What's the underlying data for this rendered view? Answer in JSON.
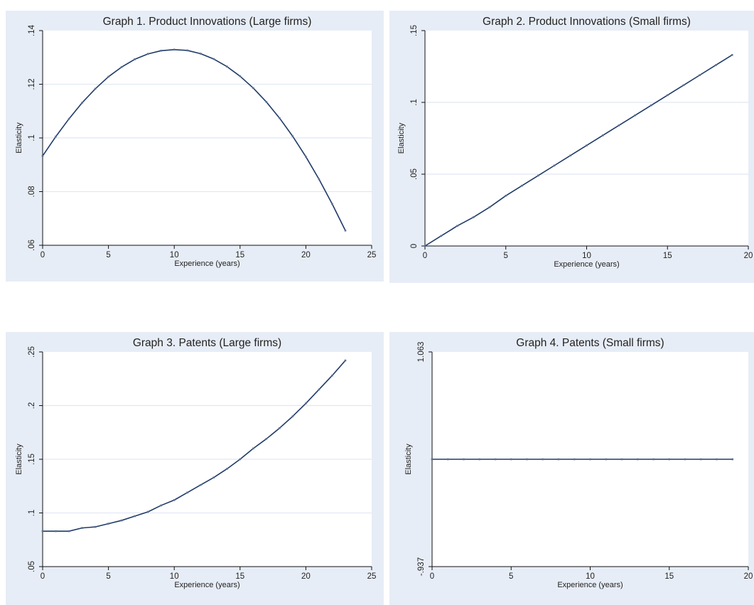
{
  "chart_data": [
    {
      "type": "line",
      "title": "Graph 1. Product Innovations (Large firms)",
      "xlabel": "Experience (years)",
      "ylabel": "Elasticity",
      "xlim": [
        0,
        25
      ],
      "ylim": [
        0.06,
        0.14
      ],
      "xticks": [
        0,
        5,
        10,
        15,
        20,
        25
      ],
      "xtick_labels": [
        "0",
        "5",
        "10",
        "15",
        "20",
        "25"
      ],
      "yticks": [
        0.06,
        0.08,
        0.1,
        0.12,
        0.14
      ],
      "ytick_labels": [
        ".06",
        ".08",
        ".1",
        ".12",
        ".14"
      ],
      "grid": true,
      "color": "#1f3a68",
      "x": [
        0,
        1,
        2,
        3,
        4,
        5,
        6,
        7,
        8,
        9,
        10,
        11,
        12,
        13,
        14,
        15,
        16,
        17,
        18,
        19,
        20,
        21,
        22,
        23
      ],
      "y": [
        0.0933,
        0.1005,
        0.1071,
        0.1131,
        0.1183,
        0.1228,
        0.1264,
        0.1293,
        0.1313,
        0.1325,
        0.1329,
        0.1326,
        0.1314,
        0.1294,
        0.1266,
        0.123,
        0.1186,
        0.1134,
        0.1074,
        0.1006,
        0.093,
        0.0846,
        0.0754,
        0.0655
      ]
    },
    {
      "type": "line",
      "title": "Graph 2. Product Innovations (Small firms)",
      "xlabel": "Experience (years)",
      "ylabel": "Elasticity",
      "xlim": [
        0,
        20
      ],
      "ylim": [
        0,
        0.15
      ],
      "xticks": [
        0,
        5,
        10,
        15,
        20
      ],
      "xtick_labels": [
        "0",
        "5",
        "10",
        "15",
        "20"
      ],
      "yticks": [
        0,
        0.05,
        0.1,
        0.15
      ],
      "ytick_labels": [
        "0",
        ".05",
        ".1",
        ".15"
      ],
      "grid": true,
      "color": "#1f3a68",
      "x": [
        0,
        1,
        2,
        3,
        4,
        5,
        6,
        7,
        8,
        9,
        10,
        11,
        12,
        13,
        14,
        15,
        16,
        17,
        18,
        19
      ],
      "y": [
        0.0,
        0.007,
        0.014,
        0.02,
        0.027,
        0.035,
        0.042,
        0.049,
        0.056,
        0.063,
        0.07,
        0.077,
        0.084,
        0.091,
        0.098,
        0.105,
        0.112,
        0.119,
        0.126,
        0.133
      ]
    },
    {
      "type": "line",
      "title": "Graph 3. Patents (Large firms)",
      "xlabel": "Experience (years)",
      "ylabel": "Elasticity",
      "xlim": [
        0,
        25
      ],
      "ylim": [
        0.05,
        0.25
      ],
      "xticks": [
        0,
        5,
        10,
        15,
        20,
        25
      ],
      "xtick_labels": [
        "0",
        "5",
        "10",
        "15",
        "20",
        "25"
      ],
      "yticks": [
        0.05,
        0.1,
        0.15,
        0.2,
        0.25
      ],
      "ytick_labels": [
        ".05",
        ".1",
        ".15",
        ".2",
        ".25"
      ],
      "grid": true,
      "color": "#1f3a68",
      "x": [
        0,
        1,
        2,
        3,
        4,
        5,
        6,
        7,
        8,
        9,
        10,
        11,
        12,
        13,
        14,
        15,
        16,
        17,
        18,
        19,
        20,
        21,
        22,
        23
      ],
      "y": [
        0.083,
        0.083,
        0.083,
        0.086,
        0.087,
        0.09,
        0.093,
        0.097,
        0.101,
        0.107,
        0.112,
        0.119,
        0.126,
        0.133,
        0.141,
        0.15,
        0.16,
        0.169,
        0.179,
        0.19,
        0.202,
        0.215,
        0.228,
        0.242
      ]
    },
    {
      "type": "line",
      "title": "Graph 4. Patents (Small firms)",
      "xlabel": "Experience (years)",
      "ylabel": "Elasticity",
      "xlim": [
        0,
        20
      ],
      "ylim": [
        -0.937,
        1.063
      ],
      "xticks": [
        0,
        5,
        10,
        15,
        20
      ],
      "xtick_labels": [
        "0",
        "5",
        "10",
        "15",
        "20"
      ],
      "yticks": [
        -0.937,
        1.063
      ],
      "ytick_labels": [
        "-.937",
        "1.063"
      ],
      "grid": false,
      "color": "#1f3a68",
      "x": [
        0,
        1,
        2,
        3,
        4,
        5,
        6,
        7,
        8,
        9,
        10,
        11,
        12,
        13,
        14,
        15,
        16,
        17,
        18,
        19
      ],
      "y": [
        0.063,
        0.063,
        0.063,
        0.063,
        0.063,
        0.063,
        0.063,
        0.063,
        0.063,
        0.063,
        0.063,
        0.063,
        0.063,
        0.063,
        0.063,
        0.063,
        0.063,
        0.063,
        0.063,
        0.063
      ]
    }
  ]
}
